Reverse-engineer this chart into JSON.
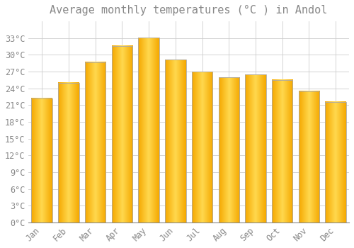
{
  "title": "Average monthly temperatures (°C ) in Andol",
  "months": [
    "Jan",
    "Feb",
    "Mar",
    "Apr",
    "May",
    "Jun",
    "Jul",
    "Aug",
    "Sep",
    "Oct",
    "Nov",
    "Dec"
  ],
  "values": [
    22.2,
    25.0,
    28.7,
    31.6,
    33.1,
    29.1,
    27.0,
    26.0,
    26.5,
    25.5,
    23.5,
    21.6
  ],
  "bar_center_color": "#FFD84D",
  "bar_edge_color": "#F5A800",
  "bar_border_color": "#AAAAAA",
  "background_color": "#FFFFFF",
  "grid_color": "#CCCCCC",
  "text_color": "#888888",
  "ylim": [
    0,
    36
  ],
  "yticks": [
    0,
    3,
    6,
    9,
    12,
    15,
    18,
    21,
    24,
    27,
    30,
    33
  ],
  "ytick_labels": [
    "0°C",
    "3°C",
    "6°C",
    "9°C",
    "12°C",
    "15°C",
    "18°C",
    "21°C",
    "24°C",
    "27°C",
    "30°C",
    "33°C"
  ],
  "title_fontsize": 11,
  "tick_fontsize": 8.5,
  "bar_width": 0.78,
  "gradient_steps": 40
}
